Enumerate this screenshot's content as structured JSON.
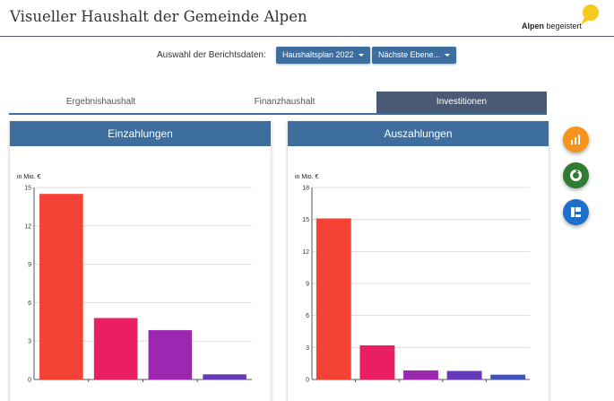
{
  "header": {
    "title": "Visueller Haushalt der Gemeinde Alpen",
    "logo_bold": "Alpen",
    "logo_rest": " begeistert"
  },
  "report": {
    "label": "Auswahl der Berichtsdaten:",
    "plan_button": "Haushaltsplan 2022",
    "level_button": "Nächste Ebene..."
  },
  "tabs": [
    {
      "label": "Ergebnishaushalt",
      "active": false
    },
    {
      "label": "Finanzhaushalt",
      "active": false
    },
    {
      "label": "Investitionen",
      "active": true
    }
  ],
  "panels": {
    "left_title": "Einzahlungen",
    "right_title": "Auszahlungen"
  },
  "fabs": [
    {
      "icon": "bar-chart-icon",
      "color": "#f7941d"
    },
    {
      "icon": "donut-chart-icon",
      "color": "#2e7d32"
    },
    {
      "icon": "treemap-icon",
      "color": "#1e6fc8"
    }
  ],
  "chart_data": [
    {
      "type": "bar",
      "ylabel": "in Mio. €",
      "ylim": [
        0,
        15
      ],
      "yticks": [
        0,
        3,
        6,
        9,
        12,
        15
      ],
      "grid": true,
      "values": [
        14.5,
        4.8,
        3.85,
        0.4
      ],
      "colors": [
        "#f44336",
        "#e91e63",
        "#9c27b0",
        "#673ab7"
      ]
    },
    {
      "type": "bar",
      "ylabel": "in Mio. €",
      "ylim": [
        0,
        18
      ],
      "yticks": [
        0,
        3,
        6,
        9,
        12,
        15,
        18
      ],
      "grid": true,
      "values": [
        15.1,
        3.2,
        0.85,
        0.8,
        0.45
      ],
      "colors": [
        "#f44336",
        "#e91e63",
        "#9c27b0",
        "#673ab7",
        "#3f51b5"
      ]
    }
  ]
}
